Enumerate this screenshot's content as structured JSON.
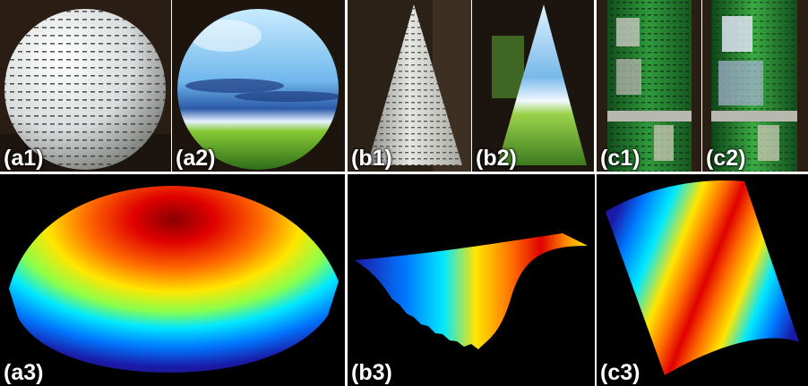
{
  "figure": {
    "panels": [
      {
        "id": "a1",
        "label": "(a1)",
        "subject": "white sphere with projected dot pattern"
      },
      {
        "id": "a2",
        "label": "(a2)",
        "subject": "sphere with projected sky and grass image"
      },
      {
        "id": "b1",
        "label": "(b1)",
        "subject": "white cone with projected dot pattern"
      },
      {
        "id": "b2",
        "label": "(b2)",
        "subject": "cone with projected sky and grass image"
      },
      {
        "id": "c1",
        "label": "(c1)",
        "subject": "green cylindrical can with projected pattern"
      },
      {
        "id": "c2",
        "label": "(c2)",
        "subject": "green can with projected image"
      },
      {
        "id": "a3",
        "label": "(a3)",
        "subject": "reconstructed dome surface, jet colormap"
      },
      {
        "id": "b3",
        "label": "(b3)",
        "subject": "reconstructed cone surface, jet colormap"
      },
      {
        "id": "c3",
        "label": "(c3)",
        "subject": "reconstructed cylinder surface, jet colormap"
      }
    ]
  },
  "colors": {
    "background": "#000000",
    "label_text": "#ffffff",
    "can_green": "#2f9a3c",
    "jet_dark_blue": "#1a1aa8",
    "jet_cyan": "#00e8ff",
    "jet_yellow": "#ffe600",
    "jet_red": "#e00000"
  }
}
